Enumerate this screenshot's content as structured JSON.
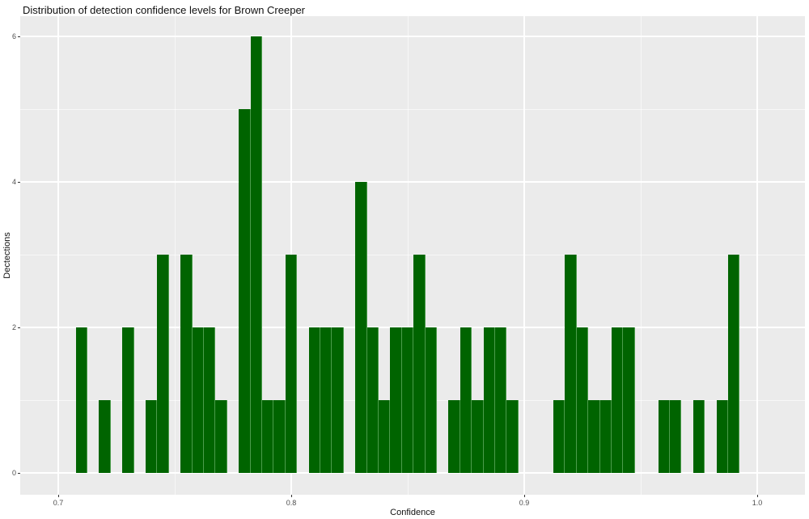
{
  "title": "Distribution of detection confidence levels for Brown Creeper",
  "chart_data": {
    "type": "bar",
    "subtype": "histogram",
    "title": "Distribution of detection confidence levels for Brown Creeper",
    "xlabel": "Confidence",
    "ylabel": "Dectections",
    "x_tick_labels": [
      "0.7",
      "0.8",
      "0.9",
      "1.0"
    ],
    "x_tick_values": [
      0.7,
      0.8,
      0.9,
      1.0
    ],
    "x_minor_values": [
      0.75,
      0.85,
      0.95
    ],
    "y_tick_labels": [
      "0",
      "2",
      "4",
      "6"
    ],
    "y_tick_values": [
      0,
      2,
      4,
      6
    ],
    "y_minor_values": [
      1,
      3,
      5
    ],
    "xlim": [
      0.6837,
      1.0205
    ],
    "ylim": [
      -0.3,
      6.3
    ],
    "binwidth": 0.005,
    "grid": true,
    "legend": "none",
    "colors": {
      "bar_fill": "#006400",
      "bar_edge": "#4c9c4c",
      "panel_bg": "#EBEBEB",
      "grid": "#FFFFFF",
      "tick_text": "#4d4d4d",
      "axis_text": "#111111",
      "tick_mark": "#333333"
    },
    "bins": [
      {
        "x": 0.71,
        "count": 2
      },
      {
        "x": 0.72,
        "count": 1
      },
      {
        "x": 0.73,
        "count": 2
      },
      {
        "x": 0.74,
        "count": 1
      },
      {
        "x": 0.745,
        "count": 3
      },
      {
        "x": 0.755,
        "count": 3
      },
      {
        "x": 0.76,
        "count": 2
      },
      {
        "x": 0.765,
        "count": 2
      },
      {
        "x": 0.77,
        "count": 1
      },
      {
        "x": 0.78,
        "count": 5
      },
      {
        "x": 0.785,
        "count": 6
      },
      {
        "x": 0.79,
        "count": 1
      },
      {
        "x": 0.795,
        "count": 1
      },
      {
        "x": 0.8,
        "count": 3
      },
      {
        "x": 0.81,
        "count": 2
      },
      {
        "x": 0.815,
        "count": 2
      },
      {
        "x": 0.82,
        "count": 2
      },
      {
        "x": 0.83,
        "count": 4
      },
      {
        "x": 0.835,
        "count": 2
      },
      {
        "x": 0.84,
        "count": 1
      },
      {
        "x": 0.845,
        "count": 2
      },
      {
        "x": 0.85,
        "count": 2
      },
      {
        "x": 0.855,
        "count": 3
      },
      {
        "x": 0.86,
        "count": 2
      },
      {
        "x": 0.87,
        "count": 1
      },
      {
        "x": 0.875,
        "count": 2
      },
      {
        "x": 0.88,
        "count": 1
      },
      {
        "x": 0.885,
        "count": 2
      },
      {
        "x": 0.89,
        "count": 2
      },
      {
        "x": 0.895,
        "count": 1
      },
      {
        "x": 0.915,
        "count": 1
      },
      {
        "x": 0.92,
        "count": 3
      },
      {
        "x": 0.925,
        "count": 2
      },
      {
        "x": 0.93,
        "count": 1
      },
      {
        "x": 0.935,
        "count": 1
      },
      {
        "x": 0.94,
        "count": 2
      },
      {
        "x": 0.945,
        "count": 2
      },
      {
        "x": 0.96,
        "count": 1
      },
      {
        "x": 0.965,
        "count": 1
      },
      {
        "x": 0.975,
        "count": 1
      },
      {
        "x": 0.985,
        "count": 1
      },
      {
        "x": 0.99,
        "count": 3
      }
    ]
  }
}
